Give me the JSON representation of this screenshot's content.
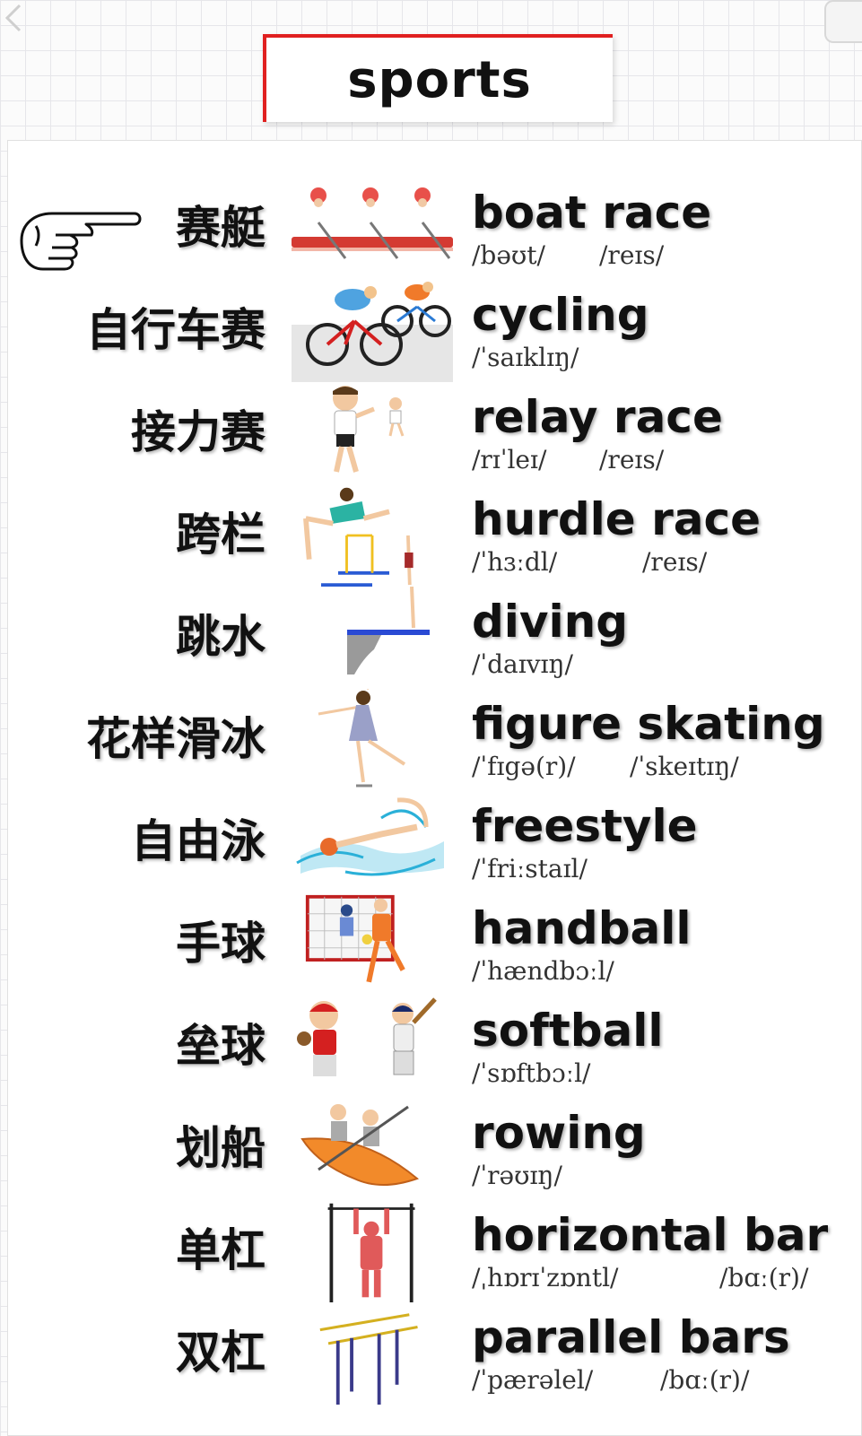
{
  "title": "sports",
  "items": [
    {
      "zh": "赛艇",
      "en": "boat race",
      "ph1": "/bəʊt/",
      "ph2": "/reɪs/"
    },
    {
      "zh": "自行车赛",
      "en": "cycling",
      "ph1": "/ˈsaɪklɪŋ/",
      "ph2": ""
    },
    {
      "zh": "接力赛",
      "en": "relay race",
      "ph1": "/rɪˈleɪ/",
      "ph2": "/reɪs/"
    },
    {
      "zh": "跨栏",
      "en": "hurdle race",
      "ph1": "/ˈhɜːdl/",
      "ph2": "/reɪs/"
    },
    {
      "zh": "跳水",
      "en": "diving",
      "ph1": "/ˈdaɪvɪŋ/",
      "ph2": ""
    },
    {
      "zh": "花样滑冰",
      "en": "figure skating",
      "ph1": "/ˈfɪgə(r)/",
      "ph2": "/ˈskeɪtɪŋ/"
    },
    {
      "zh": "自由泳",
      "en": "freestyle",
      "ph1": "/ˈfriːstaɪl/",
      "ph2": ""
    },
    {
      "zh": "手球",
      "en": "handball",
      "ph1": "/ˈhændbɔːl/",
      "ph2": ""
    },
    {
      "zh": "垒球",
      "en": "softball",
      "ph1": "/ˈsɒftbɔːl/",
      "ph2": ""
    },
    {
      "zh": "划船",
      "en": "rowing",
      "ph1": "/ˈrəʊɪŋ/",
      "ph2": ""
    },
    {
      "zh": "单杠",
      "en": "horizontal bar",
      "ph1": "/ˌhɒrɪˈzɒntl/",
      "ph2": "/bɑː(r)/"
    },
    {
      "zh": "双杠",
      "en": "parallel bars",
      "ph1": "/ˈpærəlel/",
      "ph2": "/bɑː(r)/"
    }
  ]
}
